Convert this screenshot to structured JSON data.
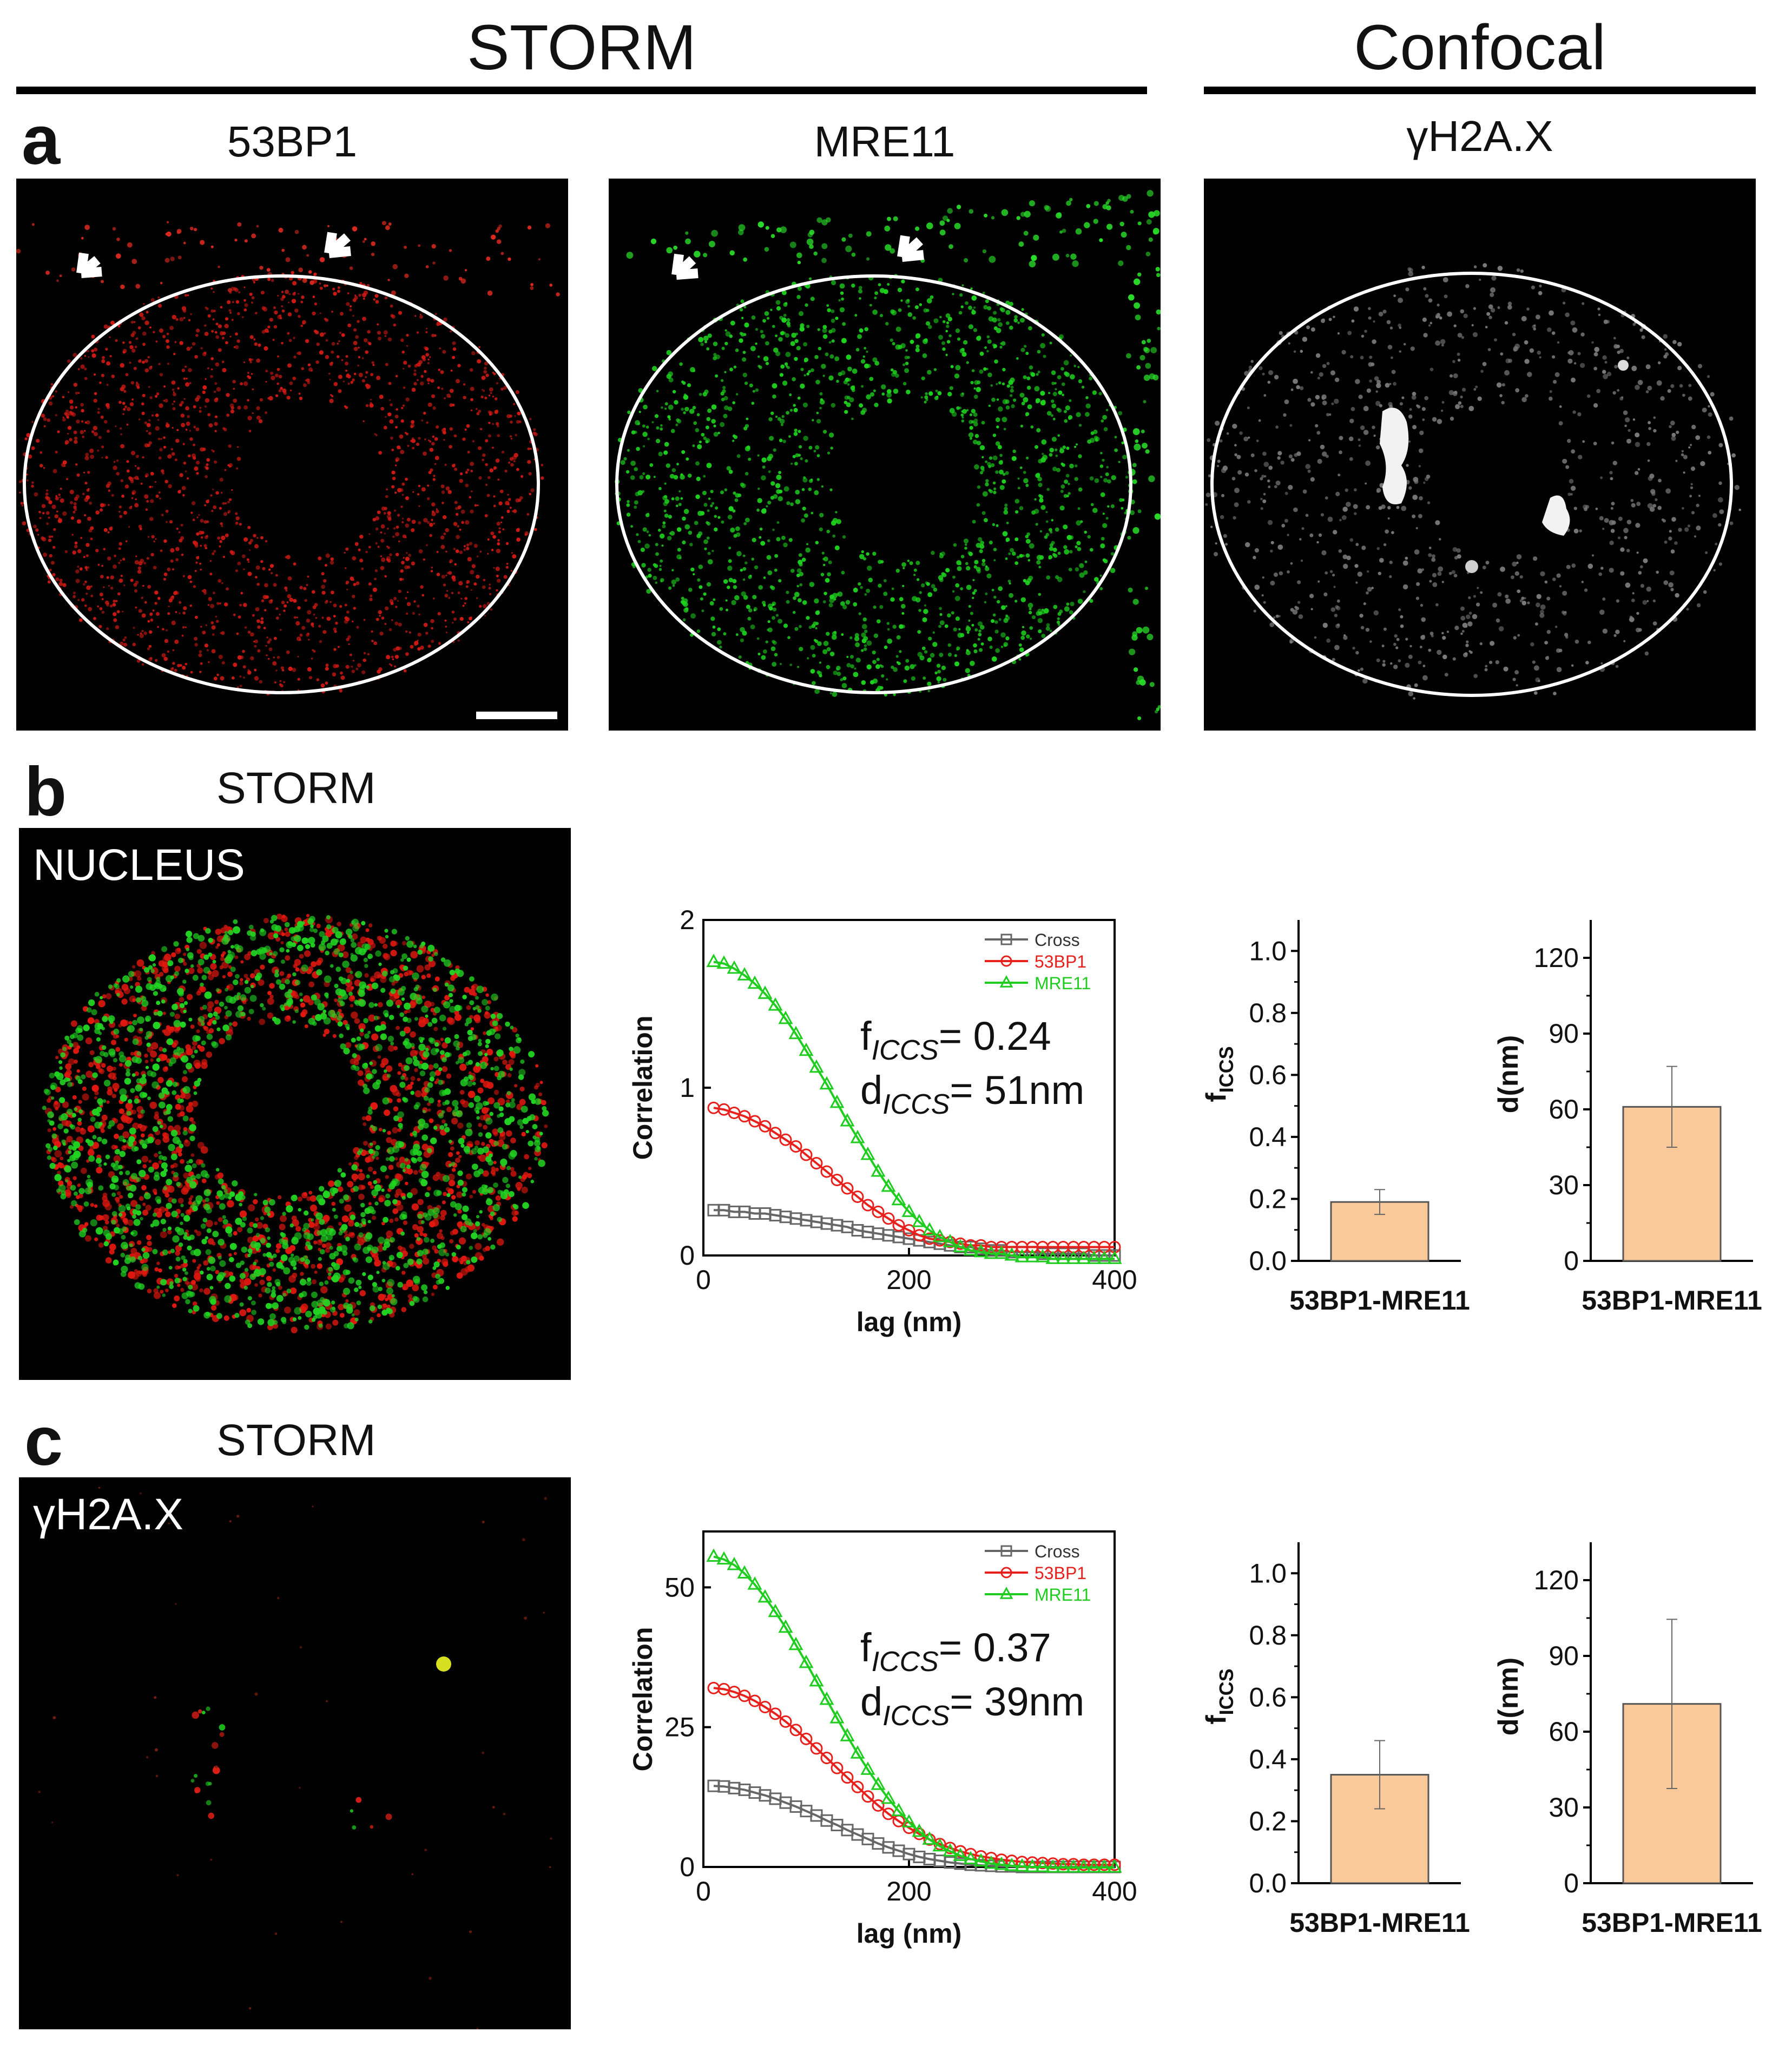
{
  "headers": {
    "storm": "STORM",
    "confocal": "Confocal"
  },
  "panel_a": {
    "label": "a",
    "titles": [
      "53BP1",
      "MRE11",
      "γH2A.X"
    ]
  },
  "panel_b": {
    "label": "b",
    "title": "STORM",
    "overlay": "NUCLEUS"
  },
  "panel_c": {
    "label": "c",
    "title": "STORM",
    "overlay": "γH2A.X"
  },
  "colors": {
    "cross": "#666666",
    "bp1": "#e8201c",
    "mre11": "#1fcc1f",
    "bar_fill": "#f9c99a",
    "bar_stroke": "#555555"
  },
  "chart_data": [
    {
      "id": "b-correlation",
      "type": "line",
      "xlabel": "lag (nm)",
      "ylabel": "Correlation",
      "xlim": [
        0,
        400
      ],
      "ylim": [
        0,
        2
      ],
      "xticks": [
        0,
        200,
        400
      ],
      "yticks": [
        0,
        1,
        2
      ],
      "x": [
        10,
        20,
        30,
        40,
        50,
        60,
        70,
        80,
        90,
        100,
        110,
        120,
        130,
        140,
        150,
        160,
        170,
        180,
        190,
        200,
        210,
        220,
        230,
        240,
        250,
        260,
        270,
        280,
        290,
        300,
        310,
        320,
        330,
        340,
        350,
        360,
        370,
        380,
        390,
        400
      ],
      "series": [
        {
          "name": "Cross",
          "values": [
            0.27,
            0.27,
            0.26,
            0.26,
            0.25,
            0.25,
            0.24,
            0.23,
            0.22,
            0.21,
            0.2,
            0.19,
            0.18,
            0.17,
            0.15,
            0.14,
            0.13,
            0.12,
            0.11,
            0.1,
            0.09,
            0.08,
            0.07,
            0.06,
            0.05,
            0.05,
            0.04,
            0.03,
            0.03,
            0.02,
            0.02,
            0.02,
            0.01,
            0.01,
            0.01,
            0.01,
            0.01,
            0.0,
            0.0,
            0.0
          ]
        },
        {
          "name": "53BP1",
          "values": [
            0.88,
            0.87,
            0.85,
            0.83,
            0.8,
            0.77,
            0.73,
            0.69,
            0.65,
            0.6,
            0.55,
            0.5,
            0.45,
            0.4,
            0.35,
            0.3,
            0.26,
            0.22,
            0.18,
            0.15,
            0.12,
            0.1,
            0.09,
            0.08,
            0.07,
            0.06,
            0.06,
            0.05,
            0.05,
            0.05,
            0.05,
            0.05,
            0.05,
            0.05,
            0.05,
            0.05,
            0.05,
            0.05,
            0.05,
            0.05
          ]
        },
        {
          "name": "MRE11",
          "values": [
            1.75,
            1.74,
            1.71,
            1.67,
            1.62,
            1.56,
            1.49,
            1.41,
            1.32,
            1.22,
            1.12,
            1.02,
            0.91,
            0.8,
            0.7,
            0.6,
            0.5,
            0.41,
            0.33,
            0.26,
            0.2,
            0.15,
            0.11,
            0.08,
            0.05,
            0.03,
            0.02,
            0.01,
            0.01,
            0.0,
            -0.01,
            -0.01,
            -0.01,
            -0.02,
            -0.02,
            -0.02,
            -0.02,
            -0.02,
            -0.02,
            -0.02
          ]
        }
      ],
      "legend": [
        "Cross",
        "53BP1",
        "MRE11"
      ],
      "annotation": {
        "f_prefix": "f",
        "f_sub": "ICCS",
        "f_value": "= 0.24",
        "d_prefix": "d",
        "d_sub": "ICCS",
        "d_value": "= 51nm"
      }
    },
    {
      "id": "b-ficcs",
      "type": "bar",
      "categories": [
        "53BP1-MRE11"
      ],
      "values": [
        0.19
      ],
      "errors": [
        0.04
      ],
      "ylabel": "f",
      "ylabel_sub": "ICCS",
      "ylim": [
        0,
        1.1
      ],
      "yticks": [
        "0.0",
        "0.2",
        "0.4",
        "0.6",
        "0.8",
        "1.0"
      ]
    },
    {
      "id": "b-d",
      "type": "bar",
      "categories": [
        "53BP1-MRE11"
      ],
      "values": [
        61
      ],
      "errors": [
        16
      ],
      "ylabel": "d(nm)",
      "ylim": [
        0,
        135
      ],
      "yticks": [
        "0",
        "30",
        "60",
        "90",
        "120"
      ]
    },
    {
      "id": "c-correlation",
      "type": "line",
      "xlabel": "lag (nm)",
      "ylabel": "Correlation",
      "xlim": [
        0,
        400
      ],
      "ylim": [
        0,
        60
      ],
      "xticks": [
        0,
        200,
        400
      ],
      "yticks": [
        0,
        25,
        50
      ],
      "x": [
        10,
        20,
        30,
        40,
        50,
        60,
        70,
        80,
        90,
        100,
        110,
        120,
        130,
        140,
        150,
        160,
        170,
        180,
        190,
        200,
        210,
        220,
        230,
        240,
        250,
        260,
        270,
        280,
        290,
        300,
        310,
        320,
        330,
        340,
        350,
        360,
        370,
        380,
        390,
        400
      ],
      "series": [
        {
          "name": "Cross",
          "values": [
            14.5,
            14.4,
            14.1,
            13.8,
            13.3,
            12.8,
            12.2,
            11.5,
            10.8,
            10.0,
            9.2,
            8.3,
            7.5,
            6.6,
            5.8,
            5.0,
            4.2,
            3.5,
            2.9,
            2.3,
            1.8,
            1.4,
            1.1,
            0.8,
            0.6,
            0.4,
            0.3,
            0.2,
            0.1,
            0.1,
            0.0,
            0.0,
            0.0,
            0.0,
            0.0,
            0.0,
            0.0,
            0.0,
            0.0,
            0.0
          ]
        },
        {
          "name": "53BP1",
          "values": [
            32.0,
            31.8,
            31.3,
            30.6,
            29.7,
            28.6,
            27.4,
            26.0,
            24.5,
            22.9,
            21.2,
            19.5,
            17.7,
            16.0,
            14.3,
            12.6,
            11.0,
            9.5,
            8.2,
            7.0,
            5.9,
            4.9,
            4.1,
            3.4,
            2.8,
            2.3,
            1.9,
            1.6,
            1.3,
            1.1,
            0.9,
            0.8,
            0.7,
            0.6,
            0.5,
            0.5,
            0.4,
            0.4,
            0.4,
            0.4
          ]
        },
        {
          "name": "MRE11",
          "values": [
            55.5,
            55.0,
            54.0,
            52.5,
            50.5,
            48.2,
            45.6,
            42.8,
            39.7,
            36.5,
            33.2,
            29.9,
            26.6,
            23.4,
            20.3,
            17.4,
            14.7,
            12.2,
            10.0,
            8.0,
            6.3,
            4.9,
            3.7,
            2.8,
            2.0,
            1.4,
            1.0,
            0.6,
            0.4,
            0.2,
            0.1,
            0.0,
            0.0,
            -0.1,
            -0.1,
            -0.1,
            -0.1,
            -0.1,
            -0.1,
            -0.1
          ]
        }
      ],
      "legend": [
        "Cross",
        "53BP1",
        "MRE11"
      ],
      "annotation": {
        "f_prefix": "f",
        "f_sub": "ICCS",
        "f_value": "= 0.37",
        "d_prefix": "d",
        "d_sub": "ICCS",
        "d_value": "= 39nm"
      }
    },
    {
      "id": "c-ficcs",
      "type": "bar",
      "categories": [
        "53BP1-MRE11"
      ],
      "values": [
        0.35
      ],
      "errors": [
        0.11
      ],
      "ylabel": "f",
      "ylabel_sub": "ICCS",
      "ylim": [
        0,
        1.1
      ],
      "yticks": [
        "0.0",
        "0.2",
        "0.4",
        "0.6",
        "0.8",
        "1.0"
      ]
    },
    {
      "id": "c-d",
      "type": "bar",
      "categories": [
        "53BP1-MRE11"
      ],
      "values": [
        71
      ],
      "errors": [
        33.5
      ],
      "ylabel": "d(nm)",
      "ylim": [
        0,
        135
      ],
      "yticks": [
        "0",
        "30",
        "60",
        "90",
        "120"
      ]
    }
  ]
}
